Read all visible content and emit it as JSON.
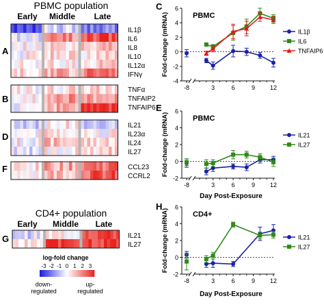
{
  "colors": {
    "blue_series": "#1a22a8",
    "green_series": "#2f8a16",
    "red_series": "#e31a1c",
    "heat_up": "#e8221c",
    "heat_down": "#1a1ae0",
    "separator": "#b5b5b5"
  },
  "heatmap_figure": {
    "pbmc_title": "PBMC population",
    "cd4_title": "CD4+ population",
    "time_groups": [
      "Early",
      "Middle",
      "Late"
    ],
    "colorbar": {
      "title": "log-fold change",
      "ticks": [
        "-3",
        "-2",
        "-1",
        "0",
        "1",
        "2",
        "3"
      ],
      "down_label": "down-\nregulated",
      "up_label": "up-\nregulated"
    },
    "panels": [
      {
        "letter": "A",
        "genes": [
          "IL1β",
          "IL6",
          "IL8",
          "IL10",
          "IL12α",
          "IFNγ"
        ]
      },
      {
        "letter": "B",
        "genes": [
          "TNFα",
          "TNFAIP2",
          "TNFAIP6"
        ]
      },
      {
        "letter": "D",
        "genes": [
          "IL21",
          "IL23α",
          "IL24",
          "IL27"
        ]
      },
      {
        "letter": "F",
        "genes": [
          "CCL23",
          "CCRL2"
        ]
      },
      {
        "letter": "G",
        "genes": [
          "IL21",
          "IL27"
        ]
      }
    ]
  },
  "chart_data": [
    {
      "type": "line",
      "panel": "C",
      "title": "PBMC",
      "xlabel": "",
      "ylabel": "Fold-change (mRNA)",
      "x_ticks": [
        "-8",
        "3",
        "6",
        "9",
        "12"
      ],
      "y_ticks": [
        "-4",
        "-2",
        "0",
        "2",
        "4",
        "6"
      ],
      "ylim": [
        -4,
        6
      ],
      "series": [
        {
          "name": "IL1β",
          "color": "#1a22a8",
          "marker": "circle",
          "x": [
            -8,
            2,
            3,
            6,
            8,
            10,
            12
          ],
          "y": [
            -0.2,
            -1.2,
            -1.9,
            0.1,
            0.0,
            -0.5,
            -1.5
          ],
          "err": [
            0.5,
            0.3,
            0.5,
            0.8,
            0.5,
            0.4,
            0.6
          ]
        },
        {
          "name": "IL6",
          "color": "#2f8a16",
          "marker": "square",
          "x": [
            2,
            3,
            6,
            8,
            10,
            12
          ],
          "y": [
            1.0,
            0.7,
            2.6,
            3.5,
            5.3,
            4.6
          ],
          "err": [
            0.2,
            0.3,
            1.0,
            1.0,
            0.7,
            0.5
          ]
        },
        {
          "name": "TNFAIP6",
          "color": "#e31a1c",
          "marker": "triangle",
          "x": [
            2,
            3,
            6,
            8,
            10,
            12
          ],
          "y": [
            -0.2,
            0.4,
            2.8,
            3.2,
            4.8,
            4.4
          ],
          "err": [
            0.3,
            0.4,
            1.0,
            1.0,
            0.6,
            0.5
          ]
        }
      ]
    },
    {
      "type": "line",
      "panel": "E",
      "title": "PBMC",
      "xlabel": "Day Post-Exposure",
      "ylabel": "Fold-change (mRNA)",
      "x_ticks": [
        "-8",
        "3",
        "6",
        "9",
        "12"
      ],
      "y_ticks": [
        "-2",
        "0",
        "2",
        "4",
        "6"
      ],
      "ylim": [
        -2,
        6
      ],
      "series": [
        {
          "name": "IL21",
          "color": "#1a22a8",
          "marker": "circle",
          "x": [
            -8,
            2,
            3,
            6,
            8,
            10,
            12
          ],
          "y": [
            -0.2,
            -1.2,
            -0.8,
            -0.6,
            -0.7,
            0.2,
            0.2
          ],
          "err": [
            0.5,
            0.4,
            0.4,
            0.3,
            0.4,
            0.4,
            0.4
          ]
        },
        {
          "name": "IL27",
          "color": "#2f8a16",
          "marker": "square",
          "x": [
            -8,
            2,
            3,
            6,
            8,
            10,
            12
          ],
          "y": [
            -0.1,
            -0.3,
            -0.2,
            0.8,
            0.8,
            0.5,
            -0.1
          ],
          "err": [
            0.4,
            0.5,
            0.4,
            0.5,
            0.4,
            0.4,
            0.5
          ]
        }
      ]
    },
    {
      "type": "line",
      "panel": "H",
      "title": "CD4+",
      "xlabel": "Day Post-Exposure",
      "ylabel": "Fold-change (mRNA)",
      "x_ticks": [
        "-8",
        "3",
        "6",
        "9",
        "12"
      ],
      "y_ticks": [
        "-2",
        "0",
        "2",
        "4",
        "6"
      ],
      "ylim": [
        -2,
        6
      ],
      "series": [
        {
          "name": "IL21",
          "color": "#1a22a8",
          "marker": "circle",
          "x": [
            -8,
            2,
            3,
            6,
            10,
            12
          ],
          "y": [
            0.3,
            -0.8,
            -0.7,
            -0.8,
            2.8,
            3.2
          ],
          "err": [
            0.4,
            0.4,
            0.5,
            0.3,
            0.8,
            0.7
          ]
        },
        {
          "name": "IL27",
          "color": "#2f8a16",
          "marker": "square",
          "x": [
            -8,
            2,
            3,
            6,
            10,
            12
          ],
          "y": [
            -0.5,
            -0.2,
            0.2,
            3.9,
            2.6,
            2.7
          ],
          "err": [
            1.0,
            0.4,
            0.4,
            0.3,
            0.4,
            0.4
          ]
        }
      ]
    }
  ]
}
